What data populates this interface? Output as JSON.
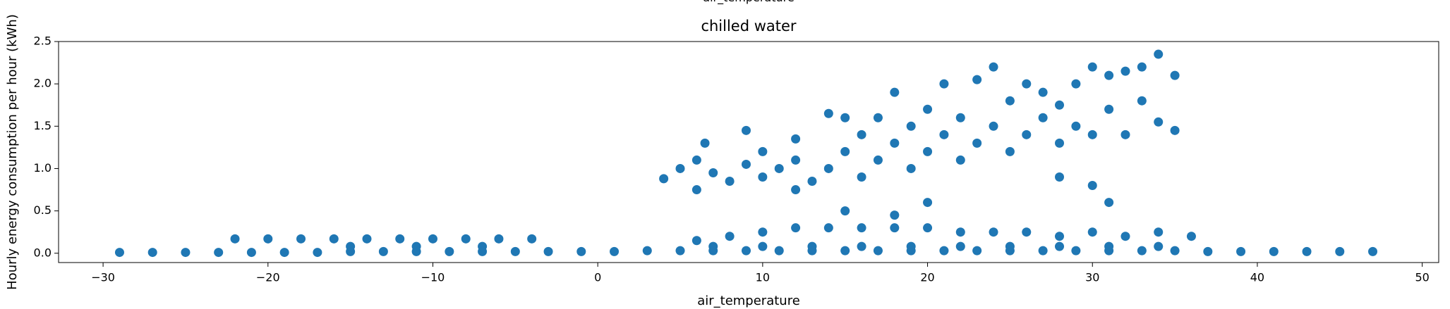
{
  "header_text": "air_temperature",
  "chart_data": {
    "type": "scatter",
    "title": "chilled water",
    "x_label": "air_temperature",
    "y_label": "Hourly energy consumption per hour (kWh)",
    "color": "#1f77b4",
    "x": [
      -29,
      -27,
      -25,
      -23,
      -21,
      -19,
      -17,
      -15,
      -13,
      -11,
      -9,
      -7,
      -5,
      -3,
      -1,
      1,
      3,
      5,
      7,
      9,
      11,
      13,
      15,
      17,
      19,
      21,
      23,
      25,
      27,
      29,
      31,
      33,
      35,
      37,
      39,
      41,
      43,
      45,
      47,
      6,
      8,
      10,
      12,
      14,
      16,
      18,
      20,
      22,
      24,
      26,
      28,
      30,
      32,
      34,
      36,
      7,
      10,
      13,
      16,
      19,
      22,
      25,
      28,
      31,
      34,
      -22,
      -20,
      -18,
      -16,
      -14,
      -12,
      -10,
      -8,
      -6,
      -4,
      -15,
      -11,
      -7,
      4,
      5,
      6,
      6.5,
      6,
      7,
      8,
      9,
      9,
      10,
      10,
      11,
      12,
      12,
      13,
      14,
      14,
      15,
      15,
      16,
      16,
      17,
      17,
      18,
      18,
      19,
      19,
      20,
      20,
      21,
      21,
      22,
      22,
      23,
      23,
      24,
      24,
      25,
      25,
      26,
      26,
      27,
      27,
      28,
      28,
      29,
      29,
      30,
      30,
      31,
      31,
      32,
      32,
      33,
      33,
      34,
      34,
      35,
      35,
      18,
      31,
      30,
      20,
      15,
      28,
      12
    ],
    "values": [
      0.01,
      0.01,
      0.01,
      0.01,
      0.01,
      0.01,
      0.01,
      0.02,
      0.02,
      0.02,
      0.02,
      0.02,
      0.02,
      0.02,
      0.02,
      0.02,
      0.03,
      0.03,
      0.03,
      0.03,
      0.03,
      0.03,
      0.03,
      0.03,
      0.03,
      0.03,
      0.03,
      0.03,
      0.03,
      0.03,
      0.03,
      0.03,
      0.03,
      0.02,
      0.02,
      0.02,
      0.02,
      0.02,
      0.02,
      0.15,
      0.2,
      0.25,
      0.3,
      0.3,
      0.3,
      0.3,
      0.3,
      0.25,
      0.25,
      0.25,
      0.2,
      0.25,
      0.2,
      0.25,
      0.2,
      0.08,
      0.08,
      0.08,
      0.08,
      0.08,
      0.08,
      0.08,
      0.08,
      0.08,
      0.08,
      0.17,
      0.17,
      0.17,
      0.17,
      0.17,
      0.17,
      0.17,
      0.17,
      0.17,
      0.17,
      0.08,
      0.08,
      0.08,
      0.88,
      1.0,
      1.1,
      1.3,
      0.75,
      0.95,
      0.85,
      1.05,
      1.45,
      0.9,
      1.2,
      1.0,
      1.1,
      1.35,
      0.85,
      1.65,
      1.0,
      1.2,
      1.6,
      0.9,
      1.4,
      1.1,
      1.6,
      1.3,
      1.9,
      1.0,
      1.5,
      1.2,
      1.7,
      1.4,
      2.0,
      1.1,
      1.6,
      1.3,
      2.05,
      1.5,
      2.2,
      1.2,
      1.8,
      1.4,
      2.0,
      1.6,
      1.9,
      1.3,
      1.75,
      1.5,
      2.0,
      1.4,
      2.2,
      1.7,
      2.1,
      1.4,
      2.15,
      1.8,
      2.2,
      1.55,
      2.35,
      1.45,
      2.1,
      0.45,
      0.6,
      0.8,
      0.6,
      0.5,
      0.9,
      0.75
    ],
    "xlim": [
      -32.7,
      51.0
    ],
    "ylim": [
      -0.11,
      2.5
    ],
    "xticks": [
      {
        "value": -30,
        "label": "−30"
      },
      {
        "value": -20,
        "label": "−20"
      },
      {
        "value": -10,
        "label": "−10"
      },
      0,
      10,
      20,
      30,
      40,
      50
    ],
    "yticks": [
      {
        "value": 0,
        "label": "0.0"
      },
      0.5,
      {
        "value": 1,
        "label": "1.0"
      },
      1.5,
      {
        "value": 2,
        "label": "2.0"
      },
      2.5
    ]
  }
}
